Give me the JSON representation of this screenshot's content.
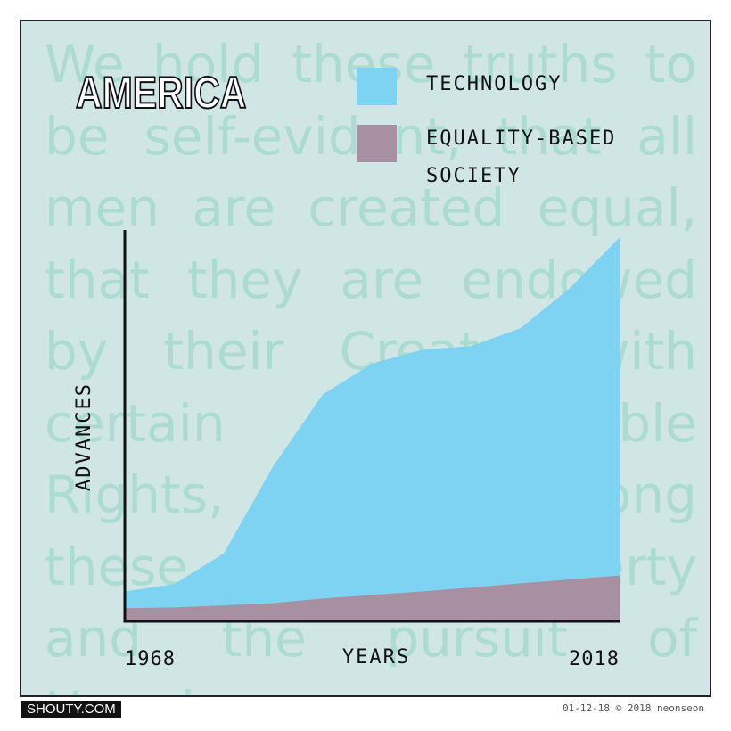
{
  "chart_data": {
    "type": "area",
    "title": "AMERICA",
    "background_text": "We hold these truths to be self-evident, that all men are created equal, that they are endowed by their Creator with certain unalienable Rights, that among these are Life, Liberty and the pursuit of Happiness.",
    "x_label": "YEARS",
    "y_label": "ADVANCES",
    "x": [
      1968,
      1973,
      1978,
      1983,
      1988,
      1993,
      1998,
      2003,
      2008,
      2013,
      2018
    ],
    "xlim": [
      1968,
      2018
    ],
    "xticks": [
      1968,
      2018
    ],
    "ylim": [
      0,
      100
    ],
    "series": [
      {
        "name": "TECHNOLOGY",
        "color": "#7fd3f2",
        "values": [
          7.7,
          9.6,
          17.5,
          40,
          58.5,
          66.5,
          70,
          71,
          75.6,
          86,
          99
        ]
      },
      {
        "name": "EQUALITY-BASED SOCIETY",
        "color": "#a7909f",
        "values": [
          3.4,
          3.6,
          4.1,
          4.7,
          5.9,
          6.8,
          7.7,
          8.7,
          9.8,
          10.8,
          11.8
        ]
      }
    ],
    "footer_left": "SHOUTY.COM",
    "footer_right": "01-12-18 © 2018 neonseon"
  }
}
